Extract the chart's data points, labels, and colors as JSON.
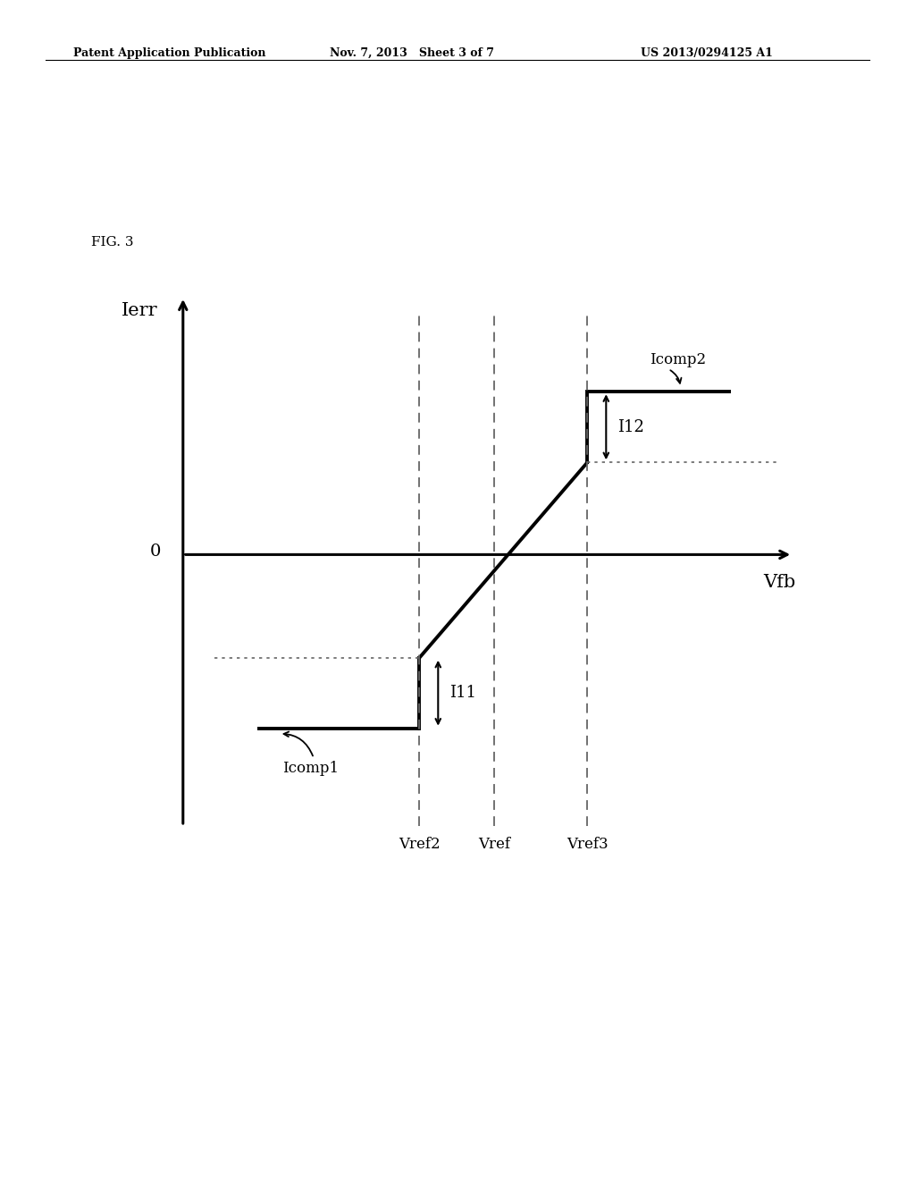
{
  "bg_color": "#ffffff",
  "header_left": "Patent Application Publication",
  "header_mid": "Nov. 7, 2013   Sheet 3 of 7",
  "header_right": "US 2013/0294125 A1",
  "fig_label": "FIG. 3",
  "ylabel": "Ierr",
  "xlabel": "Vfb",
  "zero_label": "0",
  "vref2_label": "Vref2",
  "vref_label": "Vref",
  "vref3_label": "Vref3",
  "icomp1_label": "Icomp1",
  "icomp2_label": "Icomp2",
  "i11_label": "I11",
  "i12_label": "I12",
  "xlim": [
    0,
    10
  ],
  "ylim": [
    -5,
    5
  ],
  "vref2_x": 3.8,
  "vref_x": 5.0,
  "vref3_x": 6.5,
  "icomp1_y": -3.2,
  "icomp2_y": 3.0,
  "i11_jump": 1.3,
  "i12_jump": 1.3,
  "line_color": "#000000",
  "dashed_color": "#666666",
  "line_width": 2.8,
  "axis_lw": 2.2
}
